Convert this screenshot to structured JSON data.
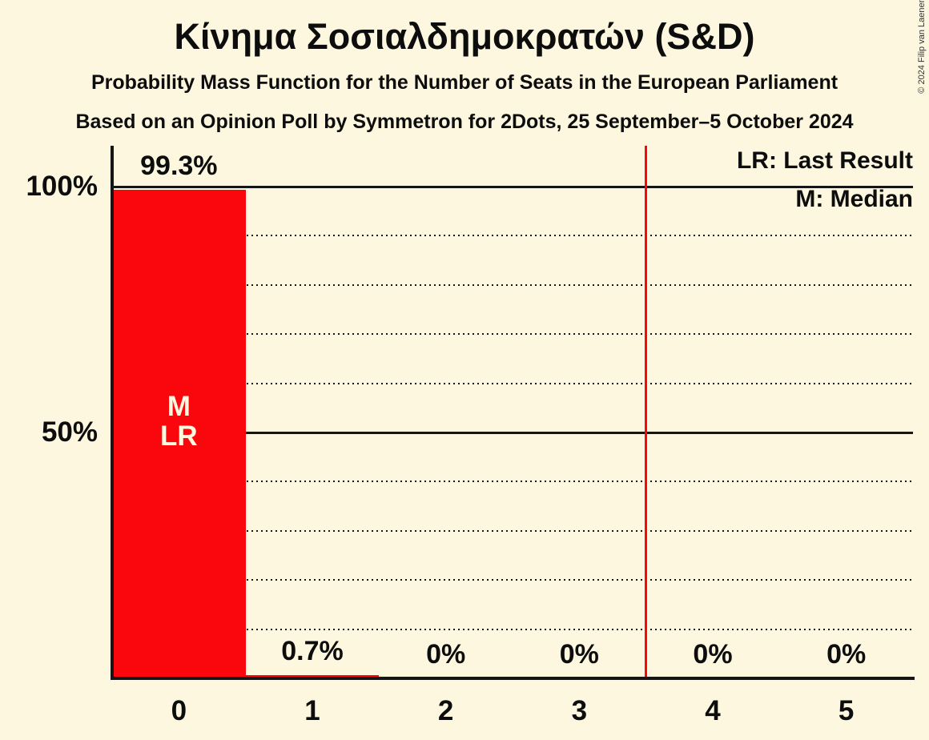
{
  "header": {
    "title": "Κίνημα Σοσιαλδημοκρατών (S&D)",
    "subtitle_line1": "Probability Mass Function for the Number of Seats in the European Parliament",
    "subtitle_line2": "Based on an Opinion Poll by Symmetron for 2Dots, 25 September–5 October 2024"
  },
  "copyright": "© 2024 Filip van Laenen",
  "legend": {
    "last_result": "LR: Last Result",
    "median": "M: Median"
  },
  "colors": {
    "background": "#FCF7DE",
    "bar": "#F9070C",
    "last_result_line": "#F9070C",
    "grid": "#151515",
    "text": "#0D0D0D",
    "bar_label_text": "#FCF7DE"
  },
  "chart_data": {
    "type": "bar",
    "title": "Κίνημα Σοσιαλδημοκρατών (S&D)",
    "subtitle": "Probability Mass Function for the Number of Seats in the European Parliament",
    "source_note": "Based on an Opinion Poll by Symmetron for 2Dots, 25 September–5 October 2024",
    "categories": [
      "0",
      "1",
      "2",
      "3",
      "4",
      "5"
    ],
    "values": [
      99.3,
      0.7,
      0,
      0,
      0,
      0
    ],
    "value_labels": [
      "99.3%",
      "0.7%",
      "0%",
      "0%",
      "0%",
      "0%"
    ],
    "xlabel": "",
    "ylabel": "",
    "ylim": [
      0,
      100
    ],
    "y_ticks": [
      {
        "value": 100,
        "label": "100%"
      },
      {
        "value": 50,
        "label": "50%"
      }
    ],
    "gridlines": {
      "solid_at": [
        100,
        50
      ],
      "dotted_at": [
        90,
        80,
        70,
        60,
        40,
        30,
        20,
        10
      ]
    },
    "legend_position": "top-right",
    "last_result_line_x": 3.5,
    "bar_annotation": {
      "category_index": 0,
      "lines": [
        "M",
        "LR"
      ]
    }
  }
}
